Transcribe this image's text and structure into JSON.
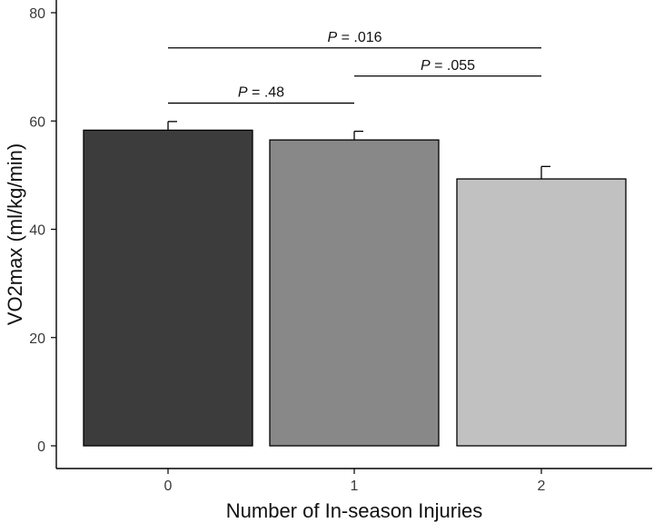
{
  "chart_data": {
    "type": "bar",
    "xlabel": "Number of In-season Injuries",
    "ylabel": "VO2max (ml/kg/min)",
    "categories": [
      "0",
      "1",
      "2"
    ],
    "values": [
      58.3,
      56.5,
      49.3
    ],
    "error_bars": [
      1.6,
      1.6,
      2.3
    ],
    "bar_colors": [
      "#3c3c3c",
      "#888888",
      "#c1c1c1"
    ],
    "ylim": [
      0,
      80
    ],
    "yticks": [
      0,
      20,
      40,
      60,
      80
    ],
    "grid": false,
    "annotations": [
      {
        "from": "0",
        "to": "2",
        "p_label": "P",
        "p_value": " = .016",
        "y": 73.5
      },
      {
        "from": "1",
        "to": "2",
        "p_label": "P",
        "p_value": " = .055",
        "y": 68.3
      },
      {
        "from": "0",
        "to": "1",
        "p_label": "P",
        "p_value": " = .48",
        "y": 63.3
      }
    ]
  }
}
